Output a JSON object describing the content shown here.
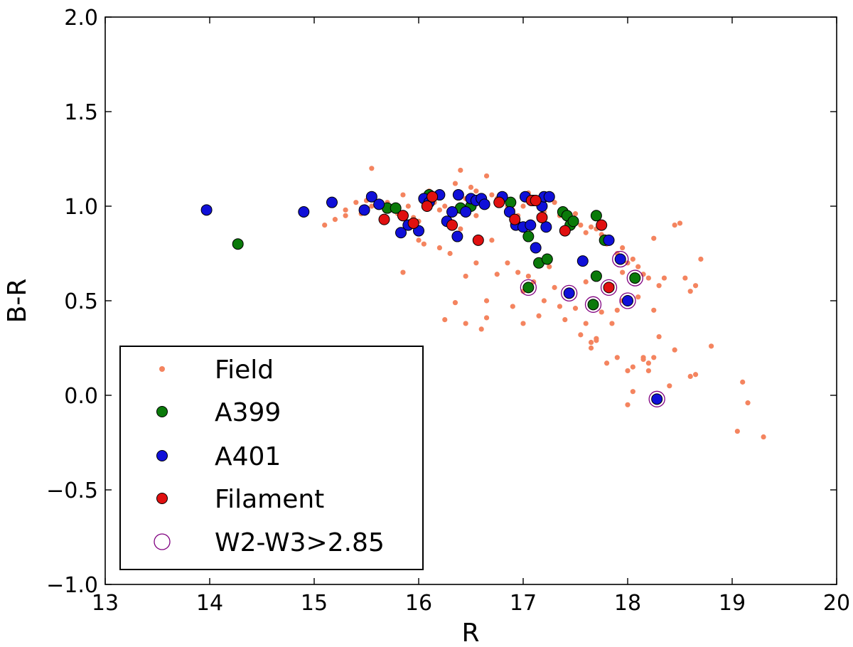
{
  "chart_data": {
    "type": "scatter",
    "xlabel": "R",
    "ylabel": "B-R",
    "xlim": [
      13,
      20
    ],
    "ylim": [
      -1.0,
      2.0
    ],
    "xticks": [
      13,
      14,
      15,
      16,
      17,
      18,
      19,
      20
    ],
    "xtick_labels": [
      "13",
      "14",
      "15",
      "16",
      "17",
      "18",
      "19",
      "20"
    ],
    "yticks": [
      -1.0,
      -0.5,
      0.0,
      0.5,
      1.0,
      1.5,
      2.0
    ],
    "ytick_labels": [
      "−1.0",
      "−0.5",
      "0.0",
      "0.5",
      "1.0",
      "1.5",
      "2.0"
    ],
    "grid": false,
    "legend_position": "lower-left",
    "series": [
      {
        "name": "Field",
        "color": "#f4845f",
        "marker": "small-dot",
        "x": [
          15.2,
          15.3,
          15.4,
          15.45,
          15.5,
          15.55,
          15.6,
          15.65,
          15.7,
          15.75,
          15.8,
          15.85,
          15.9,
          15.95,
          16.0,
          16.05,
          16.1,
          16.15,
          16.2,
          16.25,
          16.3,
          16.35,
          16.4,
          16.45,
          16.5,
          16.55,
          16.6,
          16.65,
          16.7,
          16.75,
          16.8,
          16.85,
          16.9,
          16.95,
          17.0,
          17.05,
          17.1,
          17.15,
          17.2,
          17.25,
          17.3,
          17.35,
          17.4,
          17.45,
          17.5,
          17.55,
          17.6,
          17.65,
          17.7,
          17.75,
          17.8,
          17.85,
          17.9,
          17.95,
          18.0,
          18.05,
          18.1,
          18.15,
          18.2,
          18.25,
          18.3,
          18.35,
          18.45,
          18.5,
          18.55,
          18.6,
          18.65,
          18.7,
          18.8,
          19.05,
          19.1,
          19.15,
          19.3,
          15.55,
          15.85,
          16.25,
          16.45,
          16.6,
          16.65,
          16.9,
          17.0,
          17.15,
          17.35,
          17.55,
          17.6,
          17.65,
          17.7,
          17.75,
          17.85,
          17.9,
          17.95,
          18.0,
          18.05,
          18.15,
          18.2,
          18.3,
          18.4,
          18.6,
          18.65,
          15.1,
          15.3,
          15.5,
          15.8,
          16.0,
          16.2,
          16.4,
          16.55,
          16.7,
          16.85,
          17.05,
          17.25,
          17.45,
          17.6,
          17.85,
          17.95,
          18.1,
          18.25,
          16.35,
          16.45,
          16.65,
          16.95,
          17.1,
          17.3,
          17.5,
          17.7,
          17.9,
          18.05,
          18.15,
          18.25,
          16.05,
          16.3,
          16.55,
          16.75,
          17.0,
          17.2,
          17.4,
          17.65,
          17.8,
          18.0,
          18.2,
          18.45
        ],
        "y": [
          0.93,
          0.98,
          1.02,
          0.96,
          1.03,
          1.2,
          1.01,
          1.0,
          1.02,
          0.99,
          0.96,
          1.06,
          1.0,
          0.94,
          0.92,
          1.05,
          1.08,
          1.02,
          0.98,
          1.0,
          0.9,
          1.12,
          1.19,
          1.04,
          1.1,
          1.08,
          1.02,
          1.16,
          1.06,
          1.04,
          1.02,
          1.0,
          0.98,
          0.95,
          1.0,
          1.07,
          1.02,
          1.04,
          0.97,
          1.06,
          1.02,
          0.95,
          0.98,
          0.93,
          0.96,
          0.9,
          0.86,
          0.89,
          0.88,
          0.85,
          0.8,
          0.82,
          0.75,
          0.78,
          0.7,
          0.72,
          0.68,
          0.64,
          0.62,
          0.83,
          0.58,
          0.62,
          0.9,
          0.91,
          0.62,
          0.55,
          0.58,
          0.72,
          0.26,
          -0.19,
          0.07,
          -0.04,
          -0.22,
          1.0,
          0.65,
          0.4,
          0.38,
          0.35,
          0.41,
          0.47,
          0.38,
          0.42,
          0.47,
          0.32,
          0.38,
          0.25,
          0.29,
          0.44,
          0.38,
          0.45,
          0.5,
          0.13,
          0.02,
          0.2,
          0.17,
          0.31,
          0.05,
          0.1,
          0.11,
          0.9,
          0.95,
          0.97,
          0.86,
          0.82,
          0.78,
          0.88,
          0.95,
          0.82,
          0.7,
          0.63,
          0.68,
          0.55,
          0.6,
          0.58,
          0.65,
          0.52,
          0.45,
          0.49,
          0.63,
          0.5,
          0.65,
          0.6,
          0.57,
          0.46,
          0.3,
          0.2,
          0.15,
          0.19,
          0.2,
          0.8,
          0.75,
          0.7,
          0.64,
          0.55,
          0.5,
          0.4,
          0.28,
          0.17,
          -0.05,
          0.13,
          0.24
        ]
      },
      {
        "name": "A399",
        "color": "#0a7a0a",
        "marker": "large-dot",
        "x": [
          14.27,
          15.7,
          15.78,
          16.1,
          16.4,
          16.5,
          16.88,
          17.05,
          17.1,
          17.15,
          17.23,
          17.38,
          17.42,
          17.45,
          17.48,
          17.7,
          17.7,
          17.78,
          17.05,
          17.67,
          18.07
        ],
        "y": [
          0.8,
          0.99,
          0.99,
          1.06,
          0.99,
          1.0,
          1.02,
          0.84,
          1.03,
          0.7,
          0.72,
          0.97,
          0.95,
          0.9,
          0.92,
          0.95,
          0.63,
          0.82,
          0.57,
          0.48,
          0.62
        ]
      },
      {
        "name": "A401",
        "color": "#1010d8",
        "marker": "large-dot",
        "x": [
          13.97,
          14.9,
          15.17,
          15.48,
          15.55,
          15.62,
          15.83,
          15.9,
          16.0,
          16.05,
          16.1,
          16.2,
          16.27,
          16.32,
          16.37,
          16.38,
          16.45,
          16.5,
          16.55,
          16.6,
          16.63,
          16.8,
          16.87,
          16.93,
          17.0,
          17.02,
          17.07,
          17.12,
          17.18,
          17.2,
          17.22,
          17.25,
          17.57,
          17.82,
          17.44,
          17.93,
          18.0,
          18.28
        ],
        "y": [
          0.98,
          0.97,
          1.02,
          0.98,
          1.05,
          1.01,
          0.86,
          0.9,
          0.87,
          1.04,
          1.02,
          1.06,
          0.92,
          0.97,
          0.84,
          1.06,
          0.97,
          1.04,
          1.03,
          1.04,
          1.01,
          1.05,
          0.97,
          0.9,
          0.89,
          1.05,
          0.9,
          0.78,
          1.0,
          1.05,
          0.89,
          1.05,
          0.71,
          0.82,
          0.54,
          0.72,
          0.5,
          -0.02
        ]
      },
      {
        "name": "Filament",
        "color": "#e01010",
        "marker": "large-dot",
        "x": [
          15.67,
          15.85,
          15.95,
          16.08,
          16.13,
          16.32,
          16.57,
          16.77,
          16.92,
          17.08,
          17.12,
          17.18,
          17.4,
          17.75,
          17.82
        ],
        "y": [
          0.93,
          0.95,
          0.91,
          1.0,
          1.05,
          0.9,
          0.82,
          1.02,
          0.93,
          1.03,
          1.03,
          0.94,
          0.87,
          0.9,
          0.57
        ]
      },
      {
        "name": "W2-W3>2.85",
        "color": "#800080",
        "marker": "open-circle",
        "x": [
          17.05,
          17.44,
          17.67,
          17.82,
          17.93,
          18.0,
          18.07,
          18.28
        ],
        "y": [
          0.57,
          0.54,
          0.48,
          0.57,
          0.72,
          0.5,
          0.62,
          -0.02
        ]
      }
    ]
  }
}
